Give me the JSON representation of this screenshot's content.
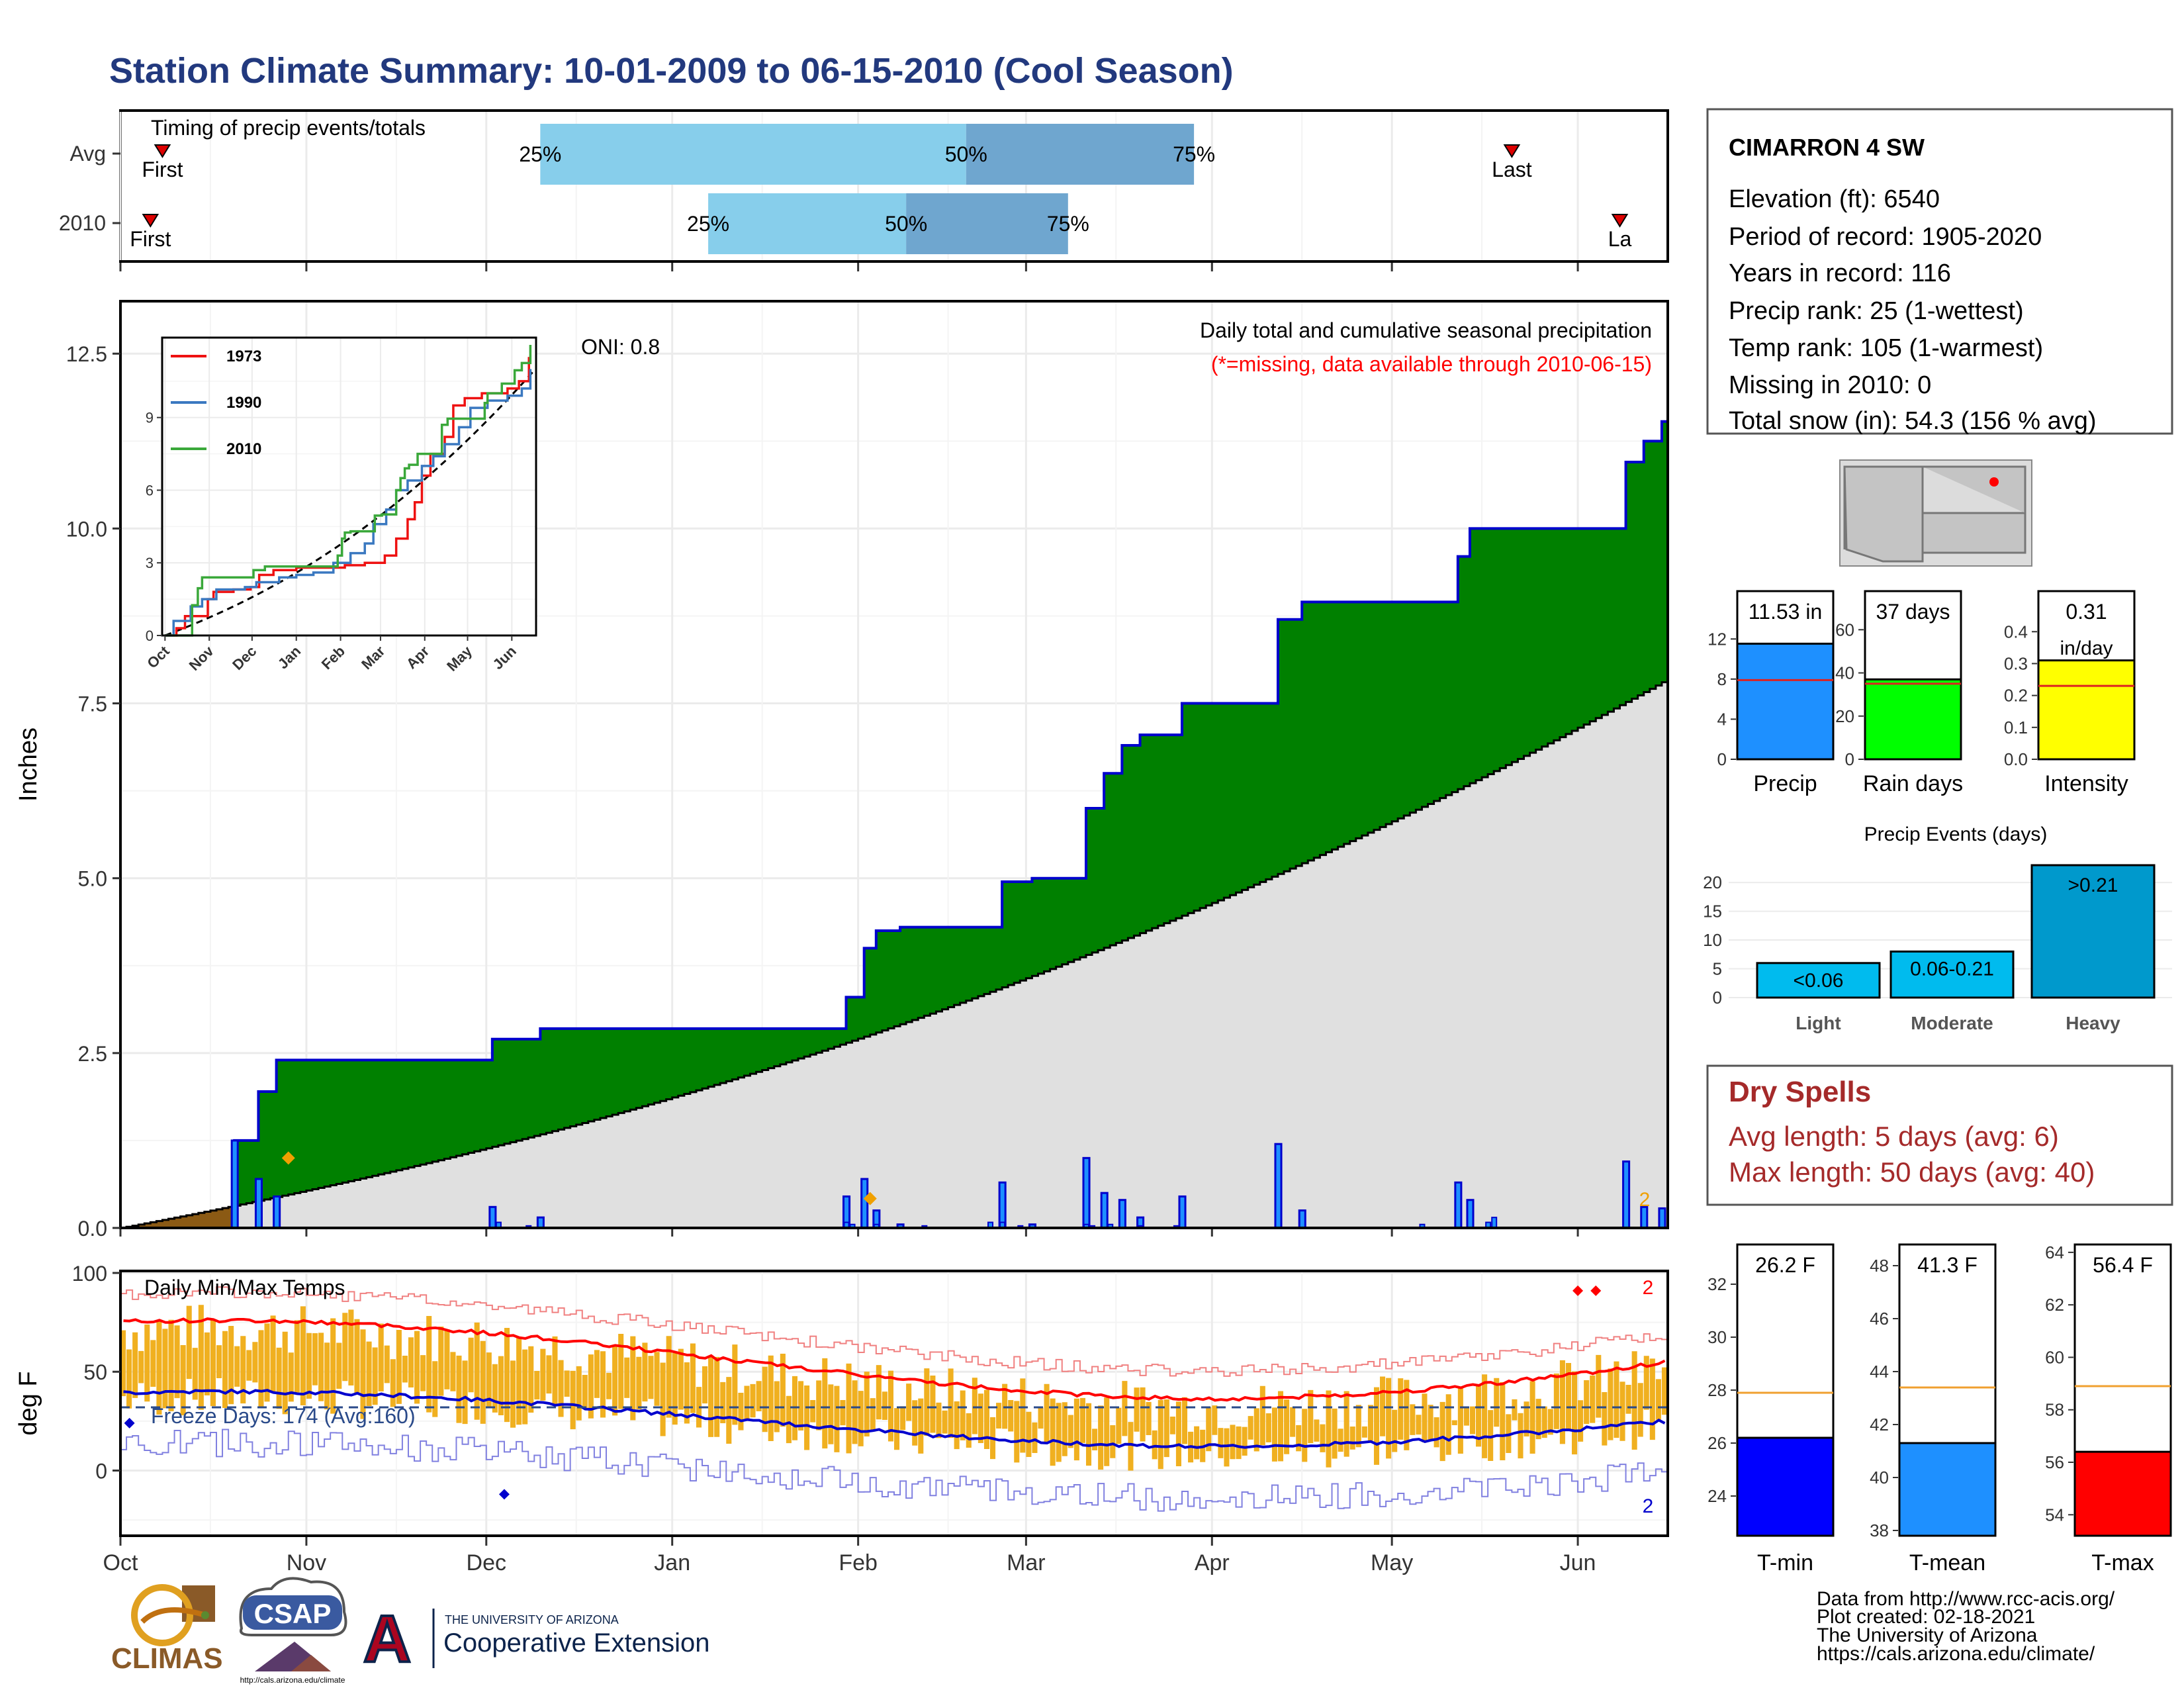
{
  "title": "Station Climate Summary: 10-01-2009 to 06-15-2010 (Cool Season)",
  "colors": {
    "title": "#22397e",
    "green_fill": "#008000",
    "avg_fill": "#e0e0e0",
    "blue_line": "#0000cd",
    "bar_light": "#87ceeb",
    "bar_dark": "#6fa6cf",
    "tmax_line": "#ff0000",
    "tmin_line": "#0000cd",
    "temp_bars": "#f0b020",
    "accent_red": "#a52a2a"
  },
  "months": [
    "Oct",
    "Nov",
    "Dec",
    "Jan",
    "Feb",
    "Mar",
    "Apr",
    "May",
    "Jun"
  ],
  "timing_panel": {
    "title": "Timing of precip events/totals",
    "rows": [
      {
        "label": "Avg",
        "first_label": "First",
        "last_label": "Last",
        "first_day": 7,
        "last_day": 232,
        "p25_day": 70,
        "p50_day": 141,
        "p75_day": 179,
        "p25": "25%",
        "p50": "50%",
        "p75": "75%"
      },
      {
        "label": "2010",
        "first_label": "First",
        "last_label": "La",
        "first_day": 5,
        "last_day": 250,
        "p25_day": 98,
        "p50_day": 131,
        "p75_day": 158,
        "p25": "25%",
        "p50": "50%",
        "p75": "75%"
      }
    ]
  },
  "precip_panel": {
    "ylabel": "Inches",
    "yticks": [
      "0.0",
      "2.5",
      "5.0",
      "7.5",
      "10.0",
      "12.5"
    ],
    "oni": "ONI: 0.8",
    "subtitle": "Daily total and cumulative seasonal precipitation",
    "missing_note": "(*=missing, data available through 2010-06-15)",
    "count_label": "2"
  },
  "inset": {
    "xticks": [
      "Oct",
      "Nov",
      "Dec",
      "Jan",
      "Feb",
      "Mar",
      "Apr",
      "May",
      "Jun"
    ],
    "yticks": [
      "0",
      "3",
      "6",
      "9"
    ],
    "legend": [
      {
        "name": "1973",
        "color": "#ee1111"
      },
      {
        "name": "1990",
        "color": "#3a78c0"
      },
      {
        "name": "2010",
        "color": "#3aa83a"
      }
    ]
  },
  "temp_panel": {
    "ylabel": "deg F",
    "title": "Daily Min/Max Temps",
    "yticks": [
      "0",
      "50",
      "100"
    ],
    "freeze": "Freeze Days: 174 (Avg:160)",
    "count_top": "2",
    "count_bottom": "2"
  },
  "station": {
    "name": "CIMARRON 4 SW",
    "lines": [
      "Elevation (ft): 6540",
      "Period of record: 1905-2020",
      "Years in record: 116",
      "Precip rank: 25 (1-wettest)",
      "Temp rank: 105 (1-warmest)",
      "Missing in 2010: 0",
      "Total snow (in): 54.3 (156 % avg)"
    ]
  },
  "mini_bars": [
    {
      "label": "Precip",
      "value_text": "11.53 in",
      "value": 11.53,
      "avg": 7.9,
      "ymax": 14,
      "yticks": [
        "0",
        "4",
        "8",
        "12"
      ],
      "tickvals": [
        0,
        4,
        8,
        12
      ],
      "color": "#1e90ff"
    },
    {
      "label": "Rain days",
      "value_text": "37 days",
      "value": 37,
      "avg": 35,
      "ymax": 65,
      "yticks": [
        "0",
        "20",
        "40",
        "60"
      ],
      "tickvals": [
        0,
        20,
        40,
        60
      ],
      "color": "#00ff00"
    },
    {
      "label": "Intensity",
      "value_text": "0.31",
      "unit_text": "in/day",
      "value": 0.31,
      "avg": 0.23,
      "ymax": 0.44,
      "yticks": [
        "0.0",
        "0.1",
        "0.2",
        "0.3",
        "0.4"
      ],
      "tickvals": [
        0,
        0.1,
        0.2,
        0.3,
        0.4
      ],
      "color": "#ffff00"
    }
  ],
  "events": {
    "title": "Precip Events (days)",
    "yticks": [
      "0",
      "5",
      "10",
      "15",
      "20"
    ],
    "ymax": 23,
    "bars": [
      {
        "label": "Light",
        "value_text": "<0.06",
        "value": 6
      },
      {
        "label": "Moderate",
        "value_text": "0.06-0.21",
        "value": 8
      },
      {
        "label": "Heavy",
        "value_text": ">0.21",
        "value": 23
      }
    ],
    "color": "#00aadd"
  },
  "dry_spells": {
    "title": "Dry Spells",
    "avg": "Avg length: 5 days (avg: 6)",
    "max": "Max length: 50 days (avg: 40)"
  },
  "temp_bars": [
    {
      "label": "T-min",
      "value_text": "26.2 F",
      "value": 26.2,
      "avg": 27.9,
      "ymin": 22.5,
      "ymax": 33.5,
      "yticks": [
        "24",
        "26",
        "28",
        "30",
        "32"
      ],
      "tickvals": [
        24,
        26,
        28,
        30,
        32
      ],
      "color": "#0000ff"
    },
    {
      "label": "T-mean",
      "value_text": "41.3 F",
      "value": 41.3,
      "avg": 43.4,
      "ymin": 37.8,
      "ymax": 48.8,
      "yticks": [
        "38",
        "40",
        "42",
        "44",
        "46",
        "48"
      ],
      "tickvals": [
        38,
        40,
        42,
        44,
        46,
        48
      ],
      "color": "#1e90ff"
    },
    {
      "label": "T-max",
      "value_text": "56.4 F",
      "value": 56.4,
      "avg": 58.9,
      "ymin": 53.2,
      "ymax": 64.3,
      "yticks": [
        "54",
        "56",
        "58",
        "60",
        "62",
        "64"
      ],
      "tickvals": [
        54,
        56,
        58,
        60,
        62,
        64
      ],
      "color": "#ff0000"
    }
  ],
  "footer": {
    "lines": [
      "Data from http://www.rcc-acis.org/",
      "Plot created: 02-18-2021",
      "The University of Arizona",
      "https://cals.arizona.edu/climate/"
    ],
    "logos": {
      "climas": "CLIMAS",
      "csap": "CSAP",
      "csap_url": "http://cals.arizona.edu/climate",
      "ua_letter": "A",
      "ua_small": "THE UNIVERSITY OF ARIZONA",
      "ua_big": "Cooperative Extension"
    }
  },
  "chart_data": {
    "type": "area",
    "title": "Daily total and cumulative seasonal precipitation",
    "ylabel": "Inches",
    "ylim": [
      0,
      12.5
    ],
    "x_dates": [
      "2009-10-01",
      "2009-10-20",
      "2009-10-24",
      "2009-10-27",
      "2009-12-02",
      "2009-12-10",
      "2010-01-30",
      "2010-02-02",
      "2010-02-04",
      "2010-02-08",
      "2010-02-25",
      "2010-03-02",
      "2010-03-09",
      "2010-03-11",
      "2010-03-14",
      "2010-03-17",
      "2010-03-20",
      "2010-03-27",
      "2010-04-12",
      "2010-04-16",
      "2010-05-12",
      "2010-05-14",
      "2010-06-09",
      "2010-06-12",
      "2010-06-15"
    ],
    "series": [
      {
        "name": "2010",
        "values": [
          0.0,
          1.25,
          1.95,
          2.4,
          2.7,
          2.85,
          3.3,
          4.0,
          4.25,
          4.3,
          4.95,
          5.0,
          5.0,
          6.0,
          6.5,
          6.9,
          7.05,
          7.5,
          8.7,
          8.95,
          9.6,
          10.0,
          10.95,
          11.25,
          11.53
        ]
      }
    ],
    "avg_end": 7.85,
    "timing": "percentile dates of precipitation totals"
  }
}
